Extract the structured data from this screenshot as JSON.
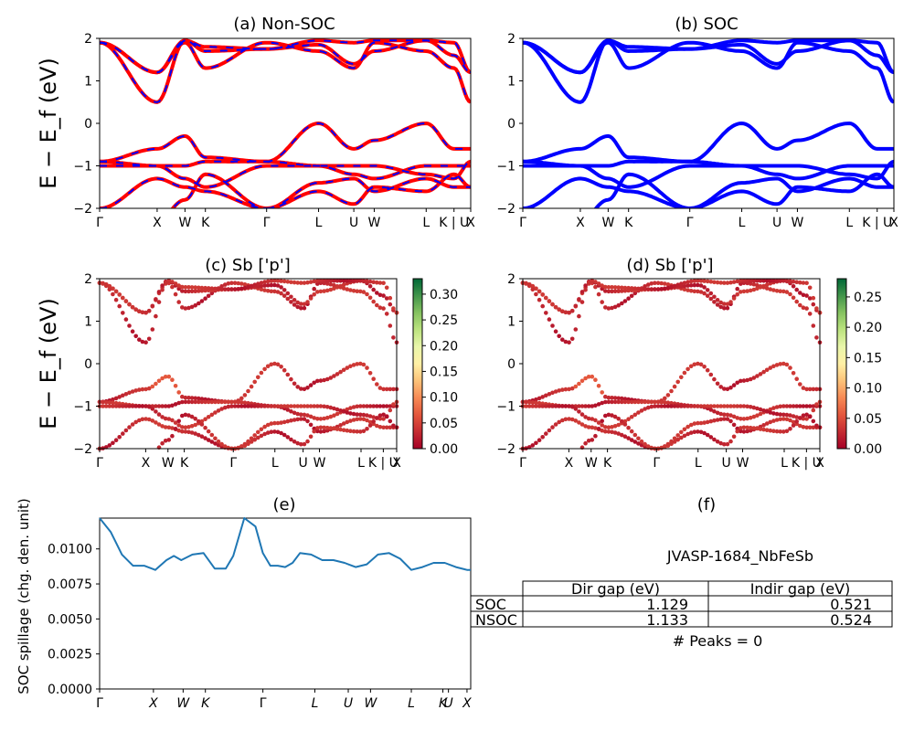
{
  "panels": {
    "a": {
      "title": "(a) Non-SOC"
    },
    "b": {
      "title": "(b) SOC"
    },
    "c": {
      "title": "(c)  Sb ['p']"
    },
    "d": {
      "title": "(d) Sb ['p']"
    },
    "e": {
      "title": "(e)"
    },
    "f": {
      "title": "(f)"
    }
  },
  "ylabel_band": "E − E_f (eV)",
  "ylabel_spillage": "SOC spillage (chg. den. unit)",
  "kpath_labels": [
    "Γ",
    "X",
    "W",
    "K",
    "Γ",
    "L",
    "U",
    "W",
    "L",
    "K | U",
    "X"
  ],
  "kpath_labels_e": [
    "Γ",
    "X",
    "W",
    "K",
    "Γ",
    "L",
    "U",
    "W",
    "L",
    "K",
    "U",
    "X"
  ],
  "band_yticks": [
    "2",
    "1",
    "0",
    "−1",
    "−2"
  ],
  "colorbar_c": {
    "ticks": [
      "0.30",
      "0.25",
      "0.20",
      "0.15",
      "0.10",
      "0.05",
      "0.00"
    ],
    "max": 0.33
  },
  "colorbar_d": {
    "ticks": [
      "0.25",
      "0.20",
      "0.15",
      "0.10",
      "0.05",
      "0.00"
    ],
    "max": 0.28
  },
  "colors": {
    "nonsoc_band": "#ff0000",
    "nonsoc_dash": "#0000ff",
    "soc_band": "#0000ff",
    "spillage_line": "#1f77b4"
  },
  "chart_data": [
    {
      "type": "line",
      "title": "(a) Non-SOC",
      "ylabel": "E − E_f (eV)",
      "ylim": [
        -2,
        2
      ],
      "x_ticks": [
        "Γ",
        "X",
        "W",
        "K",
        "Γ",
        "L",
        "U",
        "W",
        "L",
        "K | U",
        "X"
      ],
      "series": [
        {
          "values": [
            -2.0,
            -1.3,
            -0.3,
            -1.0,
            -1.9,
            0.0,
            -0.6,
            -0.3,
            0.0,
            -0.6,
            -0.6
          ]
        }
      ]
    },
    {
      "type": "line",
      "title": "(b) SOC",
      "ylim": [
        -2,
        2
      ],
      "x_ticks": [
        "Γ",
        "X",
        "W",
        "K",
        "Γ",
        "L",
        "U",
        "W",
        "L",
        "K | U",
        "X"
      ],
      "series": [
        {
          "values": [
            -2.0,
            -1.3,
            -0.3,
            -1.0,
            -1.9,
            0.0,
            -0.6,
            -0.3,
            0.0,
            -0.6,
            -0.6
          ]
        }
      ]
    },
    {
      "type": "scatter",
      "title": "(c)  Sb ['p']",
      "ylabel": "E − E_f (eV)",
      "ylim": [
        -2,
        2
      ],
      "colorbar": [
        0.0,
        0.33
      ]
    },
    {
      "type": "scatter",
      "title": "(d) Sb ['p']",
      "ylim": [
        -2,
        2
      ],
      "colorbar": [
        0.0,
        0.28
      ]
    },
    {
      "type": "line",
      "title": "(e)",
      "ylabel": "SOC spillage (chg. den. unit)",
      "ylim": [
        0,
        0.0122
      ],
      "y_ticks": [
        "0.0000",
        "0.0025",
        "0.0050",
        "0.0075",
        "0.0100"
      ],
      "x_ticks": [
        "Γ",
        "X",
        "W",
        "K",
        "Γ",
        "L",
        "U",
        "W",
        "L",
        "K",
        "U",
        "X"
      ],
      "x": [
        0,
        0.03,
        0.06,
        0.09,
        0.12,
        0.15,
        0.18,
        0.2,
        0.22,
        0.25,
        0.28,
        0.31,
        0.34,
        0.36,
        0.39,
        0.42,
        0.44,
        0.46,
        0.48,
        0.5,
        0.52,
        0.54,
        0.57,
        0.6,
        0.63,
        0.66,
        0.69,
        0.72,
        0.75,
        0.78,
        0.81,
        0.84,
        0.87,
        0.9,
        0.93,
        0.96,
        0.99,
        1.0
      ],
      "values": [
        0.0122,
        0.0112,
        0.0096,
        0.0088,
        0.0088,
        0.0085,
        0.0092,
        0.0095,
        0.0092,
        0.0096,
        0.0097,
        0.0086,
        0.0086,
        0.0095,
        0.0122,
        0.0116,
        0.0097,
        0.0088,
        0.0088,
        0.0087,
        0.009,
        0.0097,
        0.0096,
        0.0092,
        0.0092,
        0.009,
        0.0087,
        0.0089,
        0.0096,
        0.0097,
        0.0093,
        0.0085,
        0.0087,
        0.009,
        0.009,
        0.0087,
        0.0085,
        0.0085
      ]
    },
    {
      "type": "table",
      "title": "(f)",
      "caption": "JVASP-1684_NbFeSb",
      "columns": [
        "",
        "Dir gap (eV)",
        "Indir gap (eV)"
      ],
      "rows": [
        [
          "SOC",
          "1.129",
          "0.521"
        ],
        [
          "NSOC",
          "1.133",
          "0.524"
        ]
      ],
      "footer": "# Peaks = 0"
    }
  ]
}
